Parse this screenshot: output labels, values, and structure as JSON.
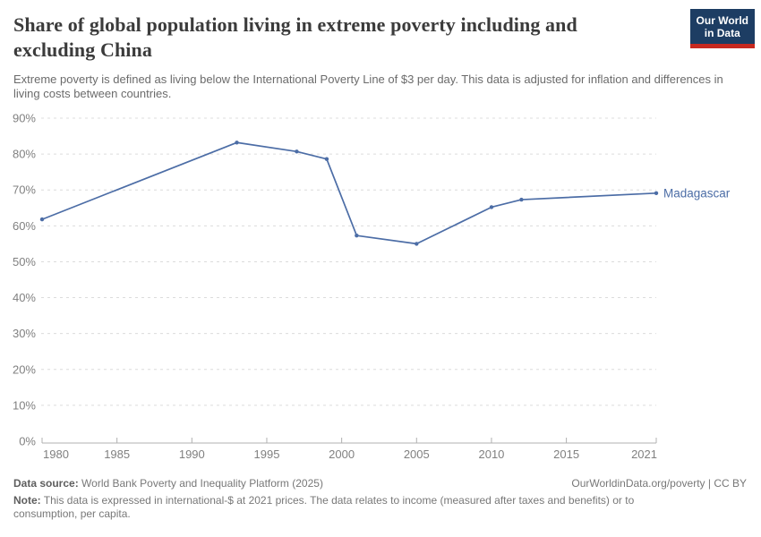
{
  "header": {
    "title": "Share of global population living in extreme poverty including and excluding China",
    "subtitle": "Extreme poverty is defined as living below the International Poverty Line of $3 per day. This data is adjusted for inflation and differences in living costs between countries.",
    "logo": {
      "line1": "Our World",
      "line2": "in Data"
    }
  },
  "chart_data": {
    "type": "line",
    "title": "Share of global population living in extreme poverty including and excluding China",
    "xlabel": "",
    "ylabel": "",
    "xlim": [
      1980,
      2021
    ],
    "ylim": [
      0,
      90
    ],
    "x_ticks": [
      1980,
      1985,
      1990,
      1995,
      2000,
      2005,
      2010,
      2015,
      2021
    ],
    "y_ticks": [
      0,
      10,
      20,
      30,
      40,
      50,
      60,
      70,
      80,
      90
    ],
    "y_tick_suffix": "%",
    "grid": "horizontal-dashed",
    "legend_position": "end-of-line-label",
    "series": [
      {
        "name": "Madagascar",
        "color": "#4c6da6",
        "x": [
          1980,
          1993,
          1997,
          1999,
          2001,
          2005,
          2010,
          2012,
          2021
        ],
        "values": [
          61.8,
          83.2,
          80.7,
          78.6,
          57.3,
          55.0,
          65.2,
          67.3,
          69.1
        ]
      }
    ]
  },
  "colors": {
    "accent_line": "#4c6da6",
    "gridline": "#dcdcdc",
    "axis": "#b0b0b0",
    "tick_label": "#808080",
    "logo_bg": "#1d3d63",
    "logo_stripe": "#c7291f"
  },
  "footer": {
    "data_source_label": "Data source:",
    "data_source_text": " World Bank Poverty and Inequality Platform (2025)",
    "link_text": "OurWorldinData.org/poverty | CC BY",
    "note_label": "Note:",
    "note_text": " This data is expressed in international-$ at 2021 prices. The data relates to income (measured after taxes and benefits) or to consumption, per capita."
  }
}
